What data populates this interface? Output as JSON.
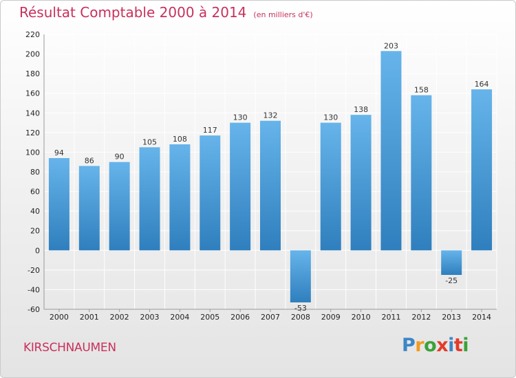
{
  "title": "Résultat Comptable 2000 à 2014",
  "subtitle": "(en milliers d'€)",
  "commune": "KIRSCHNAUMEN",
  "logo": {
    "letters": [
      "P",
      "r",
      "o",
      "x",
      "i",
      "t",
      "i"
    ],
    "colors": [
      "#3b86c6",
      "#f39a1f",
      "#3aa23a",
      "#e23c2a",
      "#3b86c6",
      "#e23c2a",
      "#3aa23a"
    ]
  },
  "colors": {
    "bar_light": "#66b4ea",
    "bar_dark": "#2f7fbe",
    "grid": "#ffffff",
    "title": "#c8305c"
  },
  "chart_data": {
    "type": "bar",
    "categories": [
      "2000",
      "2001",
      "2002",
      "2003",
      "2004",
      "2005",
      "2006",
      "2007",
      "2008",
      "2009",
      "2010",
      "2011",
      "2012",
      "2013",
      "2014"
    ],
    "values": [
      94,
      86,
      90,
      105,
      108,
      117,
      130,
      132,
      -53,
      130,
      138,
      203,
      158,
      -25,
      164
    ],
    "ylim": [
      -60,
      220
    ],
    "yticks": [
      -60,
      -40,
      -20,
      0,
      20,
      40,
      60,
      80,
      100,
      120,
      140,
      160,
      180,
      200,
      220
    ],
    "grid": true,
    "xlabel": "",
    "ylabel": ""
  }
}
